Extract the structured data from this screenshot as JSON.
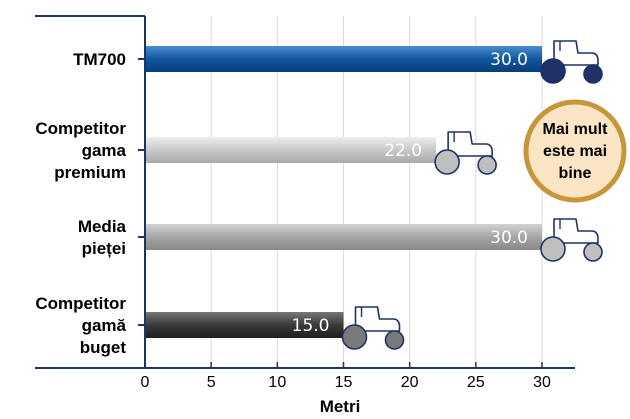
{
  "chart_data": {
    "type": "bar",
    "orientation": "horizontal",
    "categories": [
      [
        "TM700"
      ],
      [
        "Competitor",
        "gama",
        "premium"
      ],
      [
        "Media",
        "pieței"
      ],
      [
        "Competitor",
        "gamă",
        "buget"
      ]
    ],
    "values": [
      30.0,
      22.0,
      30.0,
      15.0
    ],
    "value_labels": [
      "30.0",
      "22.0",
      "30.0",
      "15.0"
    ],
    "bar_colors": [
      "#1257a0",
      "#c8c8c8",
      "#a6a6a6",
      "#3a3a3a"
    ],
    "icon_colors": [
      "#1e3267",
      "#bfbfbf",
      "#bfbfbf",
      "#7a7a7a"
    ],
    "icon": "tractor-icon",
    "xlabel": "Metri",
    "xlim": [
      0,
      30
    ],
    "xticks": [
      "0",
      "5",
      "10",
      "15",
      "20",
      "25",
      "30"
    ],
    "grid": true,
    "badge": {
      "lines": [
        "Mai mult",
        "este mai",
        "bine"
      ],
      "fill": "#fbe5c5",
      "border": "#c8963a"
    },
    "axis_color": "#1e3267"
  }
}
